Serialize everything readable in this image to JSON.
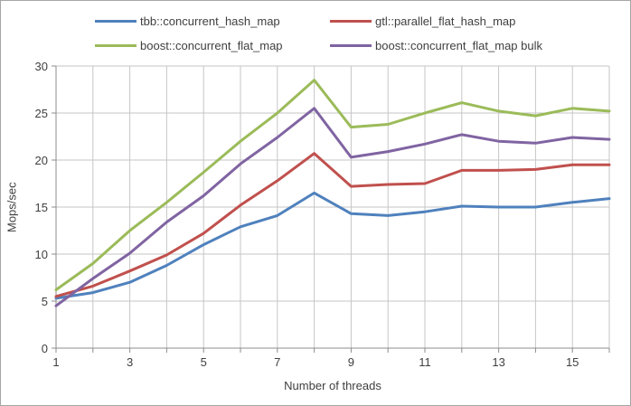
{
  "chart": {
    "xlabel": "Number of threads",
    "ylabel": "Mops/sec"
  },
  "chart_data": {
    "type": "line",
    "x": [
      1,
      2,
      3,
      4,
      5,
      6,
      7,
      8,
      9,
      10,
      11,
      12,
      13,
      14,
      15,
      16
    ],
    "series": [
      {
        "name": "tbb::concurrent_hash_map",
        "color": "#4F81BD",
        "values": [
          5.3,
          5.9,
          7.0,
          8.8,
          11.0,
          12.9,
          14.1,
          16.5,
          14.3,
          14.1,
          14.5,
          15.1,
          15.0,
          15.0,
          15.5,
          15.9
        ]
      },
      {
        "name": "gtl::parallel_flat_hash_map",
        "color": "#C0504D",
        "values": [
          5.5,
          6.6,
          8.2,
          9.9,
          12.2,
          15.2,
          17.8,
          20.7,
          17.2,
          17.4,
          17.5,
          18.9,
          18.9,
          19.0,
          19.5,
          19.5
        ]
      },
      {
        "name": "boost::concurrent_flat_map",
        "color": "#9BBB59",
        "values": [
          6.2,
          9.0,
          12.5,
          15.5,
          18.7,
          22.0,
          25.0,
          28.5,
          23.5,
          23.8,
          25.0,
          26.1,
          25.2,
          24.7,
          25.5,
          25.2
        ]
      },
      {
        "name": "boost::concurrent_flat_map bulk",
        "color": "#8064A2",
        "values": [
          4.5,
          7.4,
          10.1,
          13.4,
          16.2,
          19.6,
          22.4,
          25.5,
          20.3,
          20.9,
          21.7,
          22.7,
          22.0,
          21.8,
          22.4,
          22.2
        ]
      }
    ],
    "title": "",
    "xlabel": "Number of threads",
    "ylabel": "Mops/sec",
    "ylim": [
      0,
      30
    ],
    "yticks": [
      0,
      5,
      10,
      15,
      20,
      25,
      30
    ],
    "xtick_labels": [
      1,
      3,
      5,
      7,
      9,
      11,
      13,
      15
    ],
    "grid": true,
    "legend_position": "top",
    "colors": {
      "gridline": "#C6C6C6",
      "axis": "#8C8C8C",
      "text": "#3F3F3F",
      "background": "#FFFFFF",
      "frame_border": "#A6A6A6"
    }
  }
}
